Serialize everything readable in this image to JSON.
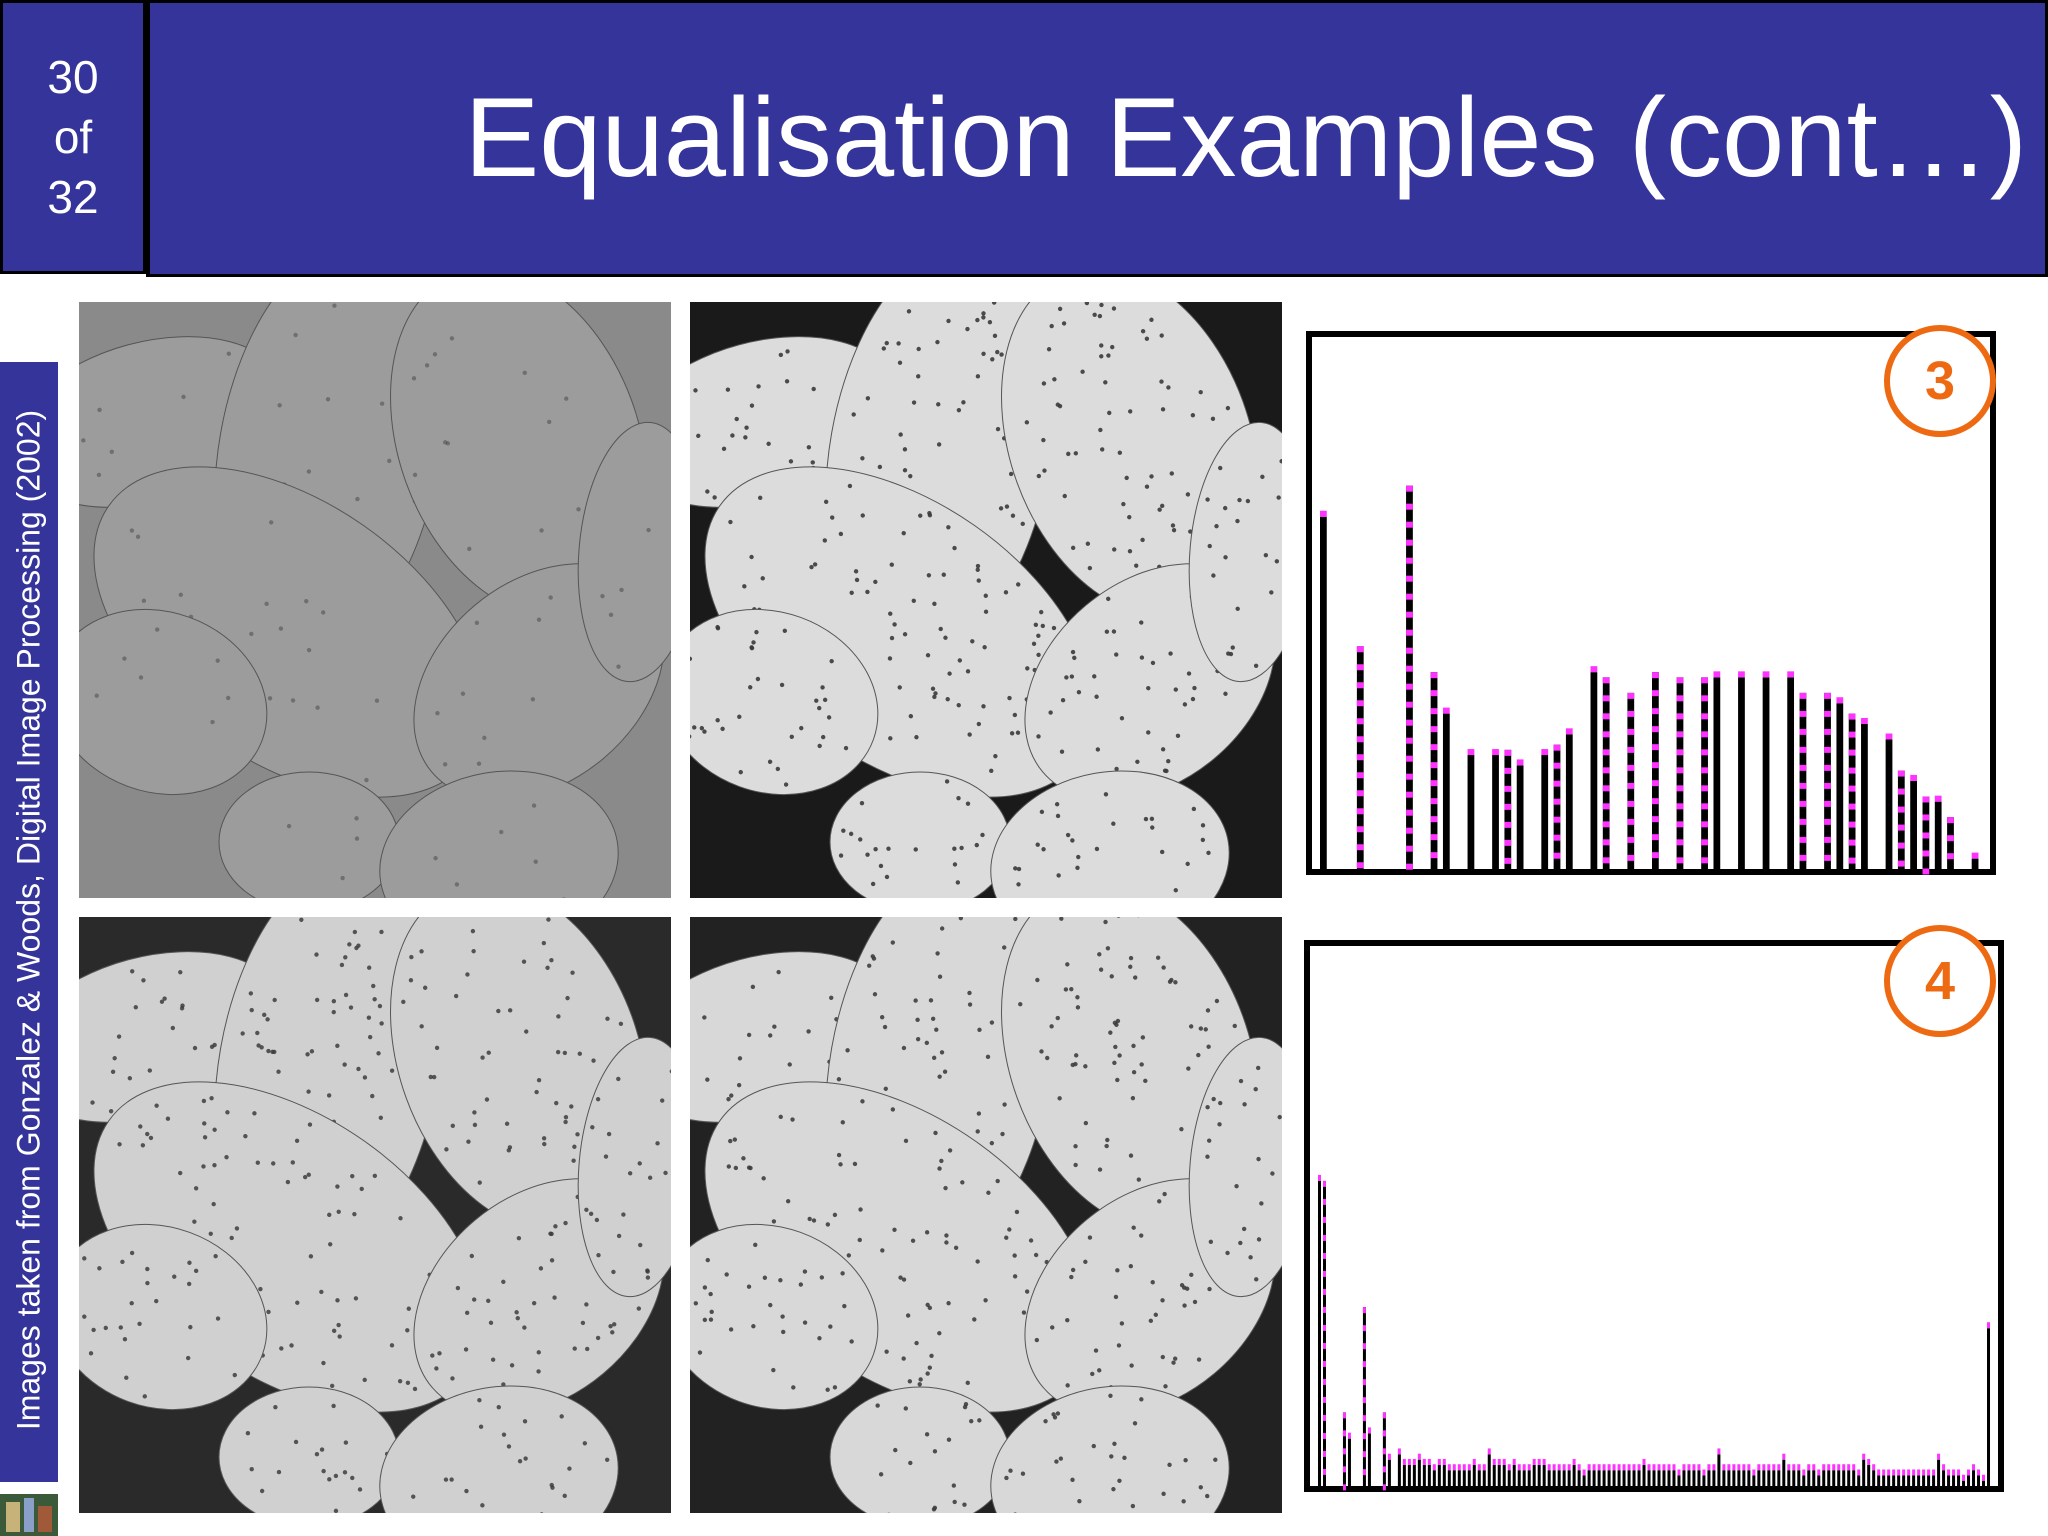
{
  "slide": {
    "number_line1": "30",
    "number_line2": "of",
    "number_line3": "32",
    "title": "Equalisation Examples (cont…)"
  },
  "credit": "Images taken from Gonzalez & Woods, Digital Image Processing (2002)",
  "badges": {
    "first": "3",
    "second": "4"
  },
  "colors": {
    "header_bg": "#35349b",
    "badge": "#ee6a12",
    "dots": "#ff33ff"
  },
  "photos": [
    {
      "name": "washed-out-original",
      "contrast": 0.25,
      "bg": "#8a8a8a",
      "fg": "#9c9c9c"
    },
    {
      "name": "equalised-result",
      "contrast": 1.0,
      "bg": "#1a1a1a",
      "fg": "#dcdcdc"
    },
    {
      "name": "histogram-example-low",
      "contrast": 0.9,
      "bg": "#2a2a2a",
      "fg": "#d0d0d0"
    },
    {
      "name": "histogram-example-equalised",
      "contrast": 0.95,
      "bg": "#222222",
      "fg": "#d8d8d8"
    }
  ],
  "histograms": [
    {
      "values": [
        0.68,
        0,
        0,
        0.43,
        0,
        0,
        0,
        0.74,
        0,
        0.38,
        0.3,
        0,
        0.22,
        0,
        0.22,
        0.23,
        0.2,
        0,
        0.22,
        0.24,
        0.26,
        0,
        0.38,
        0.37,
        0,
        0.34,
        0,
        0.38,
        0,
        0.37,
        0,
        0.37,
        0.37,
        0,
        0.37,
        0,
        0.37,
        0,
        0.37,
        0.34,
        0,
        0.34,
        0.32,
        0.3,
        0.28,
        0,
        0.25,
        0.19,
        0.17,
        0.14,
        0.13,
        0.1,
        0,
        0.02
      ]
    },
    {
      "values": [
        0.58,
        0.58,
        0,
        0,
        0,
        0.14,
        0.09,
        0,
        0,
        0.34,
        0.1,
        0,
        0,
        0.14,
        0.05,
        0,
        0.06,
        0.04,
        0.04,
        0.04,
        0.05,
        0.04,
        0.04,
        0.03,
        0.04,
        0.04,
        0.03,
        0.03,
        0.03,
        0.03,
        0.03,
        0.04,
        0.03,
        0.03,
        0.06,
        0.04,
        0.04,
        0.04,
        0.03,
        0.04,
        0.03,
        0.03,
        0.03,
        0.04,
        0.04,
        0.04,
        0.03,
        0.03,
        0.03,
        0.03,
        0.03,
        0.04,
        0.03,
        0.02,
        0.03,
        0.03,
        0.03,
        0.03,
        0.03,
        0.03,
        0.03,
        0.03,
        0.03,
        0.03,
        0.03,
        0.04,
        0.03,
        0.03,
        0.03,
        0.03,
        0.03,
        0.03,
        0.02,
        0.03,
        0.03,
        0.03,
        0.03,
        0.02,
        0.03,
        0.03,
        0.06,
        0.03,
        0.03,
        0.03,
        0.03,
        0.03,
        0.03,
        0.02,
        0.03,
        0.03,
        0.03,
        0.03,
        0.03,
        0.05,
        0.03,
        0.03,
        0.03,
        0.02,
        0.03,
        0.03,
        0.02,
        0.03,
        0.03,
        0.03,
        0.03,
        0.03,
        0.03,
        0.03,
        0.02,
        0.05,
        0.04,
        0.03,
        0.02,
        0.02,
        0.02,
        0.02,
        0.02,
        0.02,
        0.02,
        0.02,
        0.02,
        0.02,
        0.02,
        0.02,
        0.05,
        0.03,
        0.02,
        0.02,
        0.02,
        0.01,
        0.02,
        0.03,
        0.02,
        0.01,
        0.3
      ]
    }
  ]
}
